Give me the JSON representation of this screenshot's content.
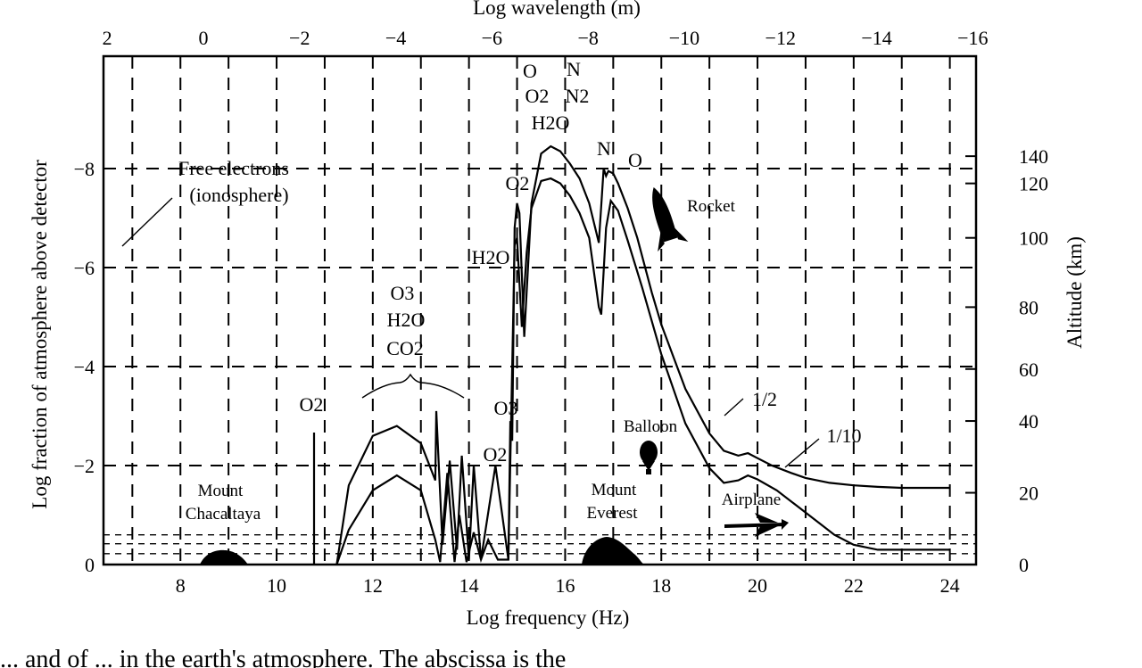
{
  "chart_data": {
    "type": "line",
    "xlabel": "Log frequency (Hz)",
    "ylabel": "Log fraction of atmosphere above detector",
    "top_xlabel": "Log wavelength (m)",
    "right_ylabel": "Altitude (km)",
    "xlim": [
      6.4,
      25.0
    ],
    "ylim": [
      0,
      -10
    ],
    "x_ticks": [
      "8",
      "10",
      "12",
      "14",
      "16",
      "18",
      "20",
      "22",
      "24"
    ],
    "y_ticks": [
      "0",
      "−2",
      "−4",
      "−6",
      "−8"
    ],
    "top_ticks": [
      "2",
      "0",
      "−2",
      "−4",
      "−6",
      "−8",
      "−10",
      "−12",
      "−14",
      "−16"
    ],
    "right_ticks": [
      "0",
      "20",
      "40",
      "60",
      "80",
      "100",
      "120",
      "140"
    ],
    "grid": true,
    "series": [
      {
        "name": "1/2",
        "x": [
          11.25,
          11.5,
          12.0,
          12.5,
          13.0,
          13.3,
          13.32,
          13.45,
          13.6,
          13.75,
          13.85,
          14.0,
          14.1,
          14.25,
          14.55,
          14.82,
          14.86,
          14.9,
          14.95,
          15.0,
          15.05,
          15.15,
          15.3,
          15.5,
          15.7,
          15.9,
          16.1,
          16.3,
          16.5,
          16.7,
          16.8,
          16.85,
          16.9,
          17.0,
          17.1,
          17.3,
          17.5,
          17.8,
          18.0,
          18.5,
          19.0,
          19.3,
          19.6,
          19.8,
          20.0,
          20.3,
          20.7,
          21.0,
          21.5,
          22.0,
          22.5,
          23.0,
          23.5,
          24.0
        ],
        "y": [
          0,
          -1.6,
          -2.6,
          -2.8,
          -2.45,
          -1.7,
          -3.1,
          -0.4,
          -2.1,
          -0.3,
          -2.2,
          -0.1,
          -2.0,
          -0.1,
          -2.0,
          -0.1,
          -2.9,
          -2.5,
          -6.8,
          -7.3,
          -7.1,
          -4.6,
          -7.3,
          -8.3,
          -8.45,
          -8.35,
          -8.1,
          -7.8,
          -7.3,
          -6.5,
          -8.0,
          -7.85,
          -7.95,
          -7.9,
          -7.7,
          -7.2,
          -6.6,
          -5.5,
          -4.85,
          -3.55,
          -2.65,
          -2.3,
          -2.2,
          -2.25,
          -2.15,
          -2.0,
          -1.85,
          -1.75,
          -1.65,
          -1.6,
          -1.57,
          -1.55,
          -1.55,
          -1.55
        ]
      },
      {
        "name": "1/10",
        "x": [
          11.25,
          11.5,
          12.0,
          12.5,
          13.0,
          13.3,
          13.4,
          13.55,
          13.7,
          13.8,
          13.95,
          14.1,
          14.25,
          14.4,
          14.6,
          14.82,
          14.95,
          15.0,
          15.1,
          15.2,
          15.3,
          15.5,
          15.7,
          15.9,
          16.1,
          16.3,
          16.5,
          16.7,
          16.75,
          16.85,
          16.95,
          17.1,
          17.3,
          17.6,
          18.0,
          18.5,
          19.0,
          19.3,
          19.6,
          19.8,
          20.0,
          20.4,
          20.8,
          21.2,
          21.6,
          22.0,
          22.5,
          23.0,
          23.5,
          24.0
        ],
        "y": [
          0,
          -0.7,
          -1.5,
          -1.8,
          -1.5,
          -0.5,
          -0.05,
          -1.85,
          -0.05,
          -1.0,
          -0.05,
          -0.65,
          -0.1,
          -0.5,
          -0.1,
          -0.1,
          -6.45,
          -6.6,
          -4.8,
          -6.3,
          -7.2,
          -7.75,
          -7.8,
          -7.7,
          -7.45,
          -7.1,
          -6.6,
          -5.2,
          -5.05,
          -6.8,
          -7.35,
          -7.15,
          -6.55,
          -5.6,
          -4.25,
          -2.85,
          -1.95,
          -1.65,
          -1.7,
          -1.8,
          -1.72,
          -1.5,
          -1.2,
          -0.9,
          -0.6,
          -0.4,
          -0.3,
          -0.3,
          -0.3,
          -0.3
        ]
      }
    ],
    "annotations": {
      "free_electrons": [
        "Free electrons",
        "(ionosphere)"
      ],
      "group_o3": [
        "O3",
        "H2O",
        "CO2"
      ],
      "top_group_left": [
        "O",
        "O2",
        "H2O"
      ],
      "top_group_right": [
        "N",
        "N2"
      ],
      "o2_left": "O2",
      "o2_mid": "O2",
      "o2_high": "O2",
      "o3_mid": "O3",
      "h2o_mid": "H2O",
      "n_peak": "N",
      "o_peak": "O",
      "rocket": "Rocket",
      "balloon": "Balloon",
      "airplane": "Airplane",
      "mount_chacaltaya": [
        "Mount",
        "Chacaltaya"
      ],
      "mount_everest": [
        "Mount",
        "Everest"
      ],
      "label_half": "1/2",
      "label_tenth": "1/10"
    },
    "caption": "... and of ... in the earth's atmosphere. The abscissa is the"
  }
}
